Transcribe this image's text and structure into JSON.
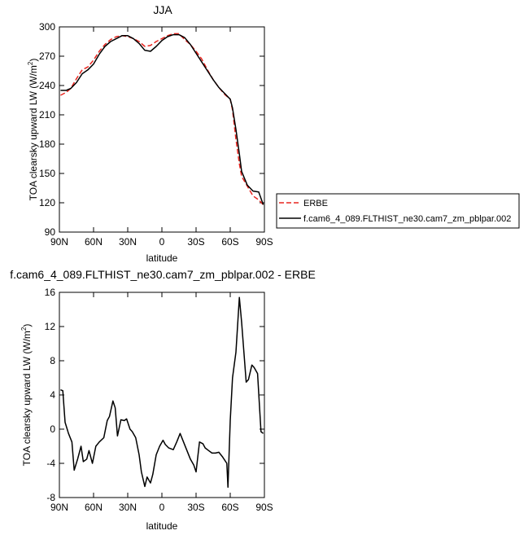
{
  "chart_data": [
    {
      "type": "line",
      "title": "JJA",
      "xlabel": "latitude",
      "ylabel_main": "TOA clearsky upward LW (W/m",
      "ylabel_sup": "2",
      "ylabel_close": ")",
      "xlim": [
        90,
        -90
      ],
      "ylim": [
        90,
        300
      ],
      "xticks": [
        90,
        60,
        30,
        0,
        -30,
        -60,
        -90
      ],
      "xtick_labels": [
        "90N",
        "60N",
        "30N",
        "0",
        "30S",
        "60S",
        "90S"
      ],
      "yticks": [
        90,
        120,
        150,
        180,
        210,
        240,
        270,
        300
      ],
      "ytick_labels": [
        "90",
        "120",
        "150",
        "180",
        "210",
        "240",
        "270",
        "300"
      ],
      "legend_position": "right",
      "series": [
        {
          "name": "ERBE",
          "color": "#e8251f",
          "dash": true,
          "x": [
            89,
            84,
            80,
            75,
            70,
            65,
            60,
            55,
            50,
            45,
            40,
            35,
            30,
            25,
            20,
            15,
            10,
            5,
            0,
            -5,
            -10,
            -15,
            -20,
            -25,
            -30,
            -35,
            -40,
            -45,
            -50,
            -55,
            -60,
            -62,
            -65,
            -68,
            -70,
            -75,
            -80,
            -85,
            -89
          ],
          "y": [
            230,
            233,
            237,
            247,
            256,
            259,
            266,
            275,
            282,
            287,
            290,
            291,
            290,
            288,
            285,
            280,
            281,
            285,
            288,
            291,
            293,
            293,
            287,
            282,
            275,
            267,
            256,
            246,
            238,
            231,
            226,
            215,
            185,
            160,
            147,
            137,
            127,
            123,
            118
          ]
        },
        {
          "name": "f.cam6_4_089.FLTHIST_ne30.cam7_zm_pblpar.002",
          "color": "#000000",
          "dash": false,
          "x": [
            89,
            84,
            80,
            75,
            70,
            65,
            60,
            55,
            50,
            45,
            40,
            35,
            30,
            25,
            20,
            15,
            10,
            5,
            0,
            -5,
            -10,
            -15,
            -20,
            -25,
            -30,
            -35,
            -40,
            -45,
            -50,
            -55,
            -60,
            -62,
            -65,
            -68,
            -70,
            -75,
            -80,
            -85,
            -89
          ],
          "y": [
            235,
            235,
            237,
            243,
            252,
            256,
            262,
            272,
            280,
            285,
            288,
            291,
            291,
            288,
            283,
            276,
            275,
            280,
            286,
            290,
            292,
            292,
            289,
            282,
            273,
            264,
            255,
            246,
            238,
            232,
            226,
            217,
            195,
            170,
            152,
            138,
            132,
            131,
            118
          ]
        }
      ]
    },
    {
      "type": "line",
      "title": "f.cam6_4_089.FLTHIST_ne30.cam7_zm_pblpar.002 - ERBE",
      "xlabel": "latitude",
      "ylabel_main": "TOA clearsky upward LW (W/m",
      "ylabel_sup": "2",
      "ylabel_close": ")",
      "xlim": [
        90,
        -90
      ],
      "ylim": [
        -8,
        16
      ],
      "xticks": [
        90,
        60,
        30,
        0,
        -30,
        -60,
        -90
      ],
      "xtick_labels": [
        "90N",
        "60N",
        "30N",
        "0",
        "30S",
        "60S",
        "90S"
      ],
      "yticks": [
        -8,
        -4,
        0,
        4,
        8,
        12,
        16
      ],
      "ytick_labels": [
        "-8",
        "-4",
        "0",
        "4",
        "8",
        "12",
        "16"
      ],
      "series": [
        {
          "color": "#000000",
          "dash": false,
          "x": [
            89,
            87,
            85,
            82,
            79,
            77,
            74,
            71,
            69,
            66,
            64,
            61,
            58,
            55,
            51,
            48,
            46,
            43,
            41,
            39,
            36,
            33,
            31,
            28,
            26,
            23,
            20,
            18,
            15,
            13,
            10,
            8,
            5,
            2,
            -1,
            -3,
            -6,
            -10,
            -13,
            -16,
            -19,
            -22,
            -25,
            -28,
            -30,
            -33,
            -36,
            -38,
            -41,
            -44,
            -47,
            -50,
            -53,
            -57,
            -58,
            -60,
            -62,
            -65,
            -68,
            -70,
            -72,
            -74,
            -76,
            -79,
            -81,
            -84,
            -87,
            -89
          ],
          "y": [
            4.6,
            4.5,
            0.8,
            -0.5,
            -1.5,
            -4.8,
            -3.5,
            -2.0,
            -3.8,
            -3.5,
            -2.5,
            -4.0,
            -2.0,
            -1.5,
            -1.0,
            1.0,
            1.5,
            3.3,
            2.5,
            -0.8,
            1.1,
            1.0,
            1.2,
            0.0,
            -0.3,
            -1.0,
            -3.0,
            -5.0,
            -6.7,
            -5.6,
            -6.3,
            -5.3,
            -3.0,
            -2.0,
            -1.3,
            -1.8,
            -2.2,
            -2.4,
            -1.5,
            -0.5,
            -1.5,
            -2.5,
            -3.5,
            -4.2,
            -5.0,
            -1.5,
            -1.7,
            -2.2,
            -2.5,
            -2.8,
            -2.8,
            -2.7,
            -3.2,
            -4.0,
            -6.8,
            1.0,
            6.0,
            9.0,
            15.4,
            12.5,
            9.0,
            5.5,
            5.8,
            7.5,
            7.2,
            6.5,
            -0.3,
            -0.5
          ]
        }
      ]
    }
  ]
}
